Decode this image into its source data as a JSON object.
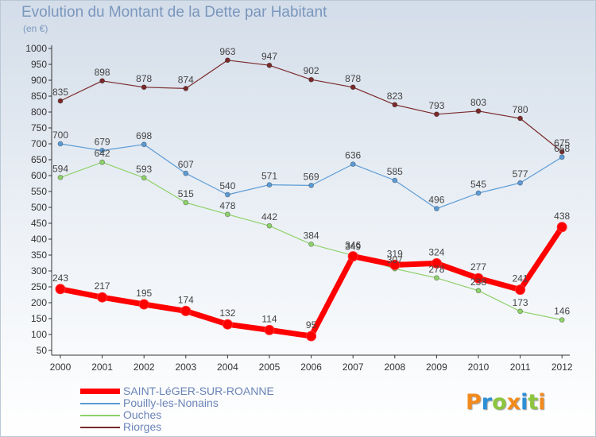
{
  "header": {
    "title": "Evolution du Montant de la Dette par Habitant",
    "subtitle": "(en €)"
  },
  "logo": {
    "text": "Proxiti",
    "letters": [
      "P",
      "r",
      "o",
      "x",
      "i",
      "t",
      "i"
    ],
    "colors": [
      "#f28a1c",
      "#2b8fd6",
      "#8cc63e",
      "#f28a1c",
      "#2b8fd6",
      "#8cc63e",
      "#f28a1c"
    ]
  },
  "chart_data": {
    "type": "line",
    "title": "Evolution du Montant de la Dette par Habitant",
    "subtitle": "(en €)",
    "x": [
      "2000",
      "2001",
      "2002",
      "2003",
      "2004",
      "2005",
      "2006",
      "2007",
      "2008",
      "2009",
      "2010",
      "2011",
      "2012"
    ],
    "ylim": [
      50,
      1000
    ],
    "yticks": [
      50,
      100,
      150,
      200,
      250,
      300,
      350,
      400,
      450,
      500,
      550,
      600,
      650,
      700,
      750,
      800,
      850,
      900,
      950,
      1000
    ],
    "grid": false,
    "legend_position": "bottom-left",
    "series": [
      {
        "name": "SAINT-LéGER-SUR-ROANNE",
        "color": "#ff0000",
        "width": 7,
        "marker": 6,
        "values": [
          243,
          217,
          195,
          174,
          132,
          114,
          95,
          346,
          319,
          324,
          277,
          241,
          438
        ],
        "labels": [
          "243",
          "217",
          "195",
          "174",
          "132",
          "114",
          "95",
          "346",
          "319",
          "324",
          "277",
          "241",
          "438"
        ]
      },
      {
        "name": "Pouilly-les-Nonains",
        "color": "#5b9bd5",
        "width": 1.2,
        "marker": 3,
        "values": [
          700,
          679,
          698,
          607,
          540,
          571,
          569,
          636,
          585,
          496,
          545,
          577,
          658
        ],
        "labels": [
          "700",
          "679",
          "698",
          "607",
          "540",
          "571",
          "569",
          "636",
          "585",
          "496",
          "545",
          "577",
          "658"
        ]
      },
      {
        "name": "Ouches",
        "color": "#8fd16a",
        "width": 1.2,
        "marker": 3,
        "values": [
          594,
          642,
          593,
          515,
          478,
          442,
          384,
          349,
          307,
          278,
          238,
          173,
          146
        ],
        "labels": [
          "594",
          "642",
          "593",
          "515",
          "478",
          "442",
          "384",
          "349",
          "307",
          "278",
          "238",
          "173",
          "146"
        ]
      },
      {
        "name": "Riorges",
        "color": "#7a2a2a",
        "width": 1.2,
        "marker": 3,
        "values": [
          835,
          898,
          878,
          874,
          963,
          947,
          902,
          878,
          823,
          793,
          803,
          780,
          675
        ],
        "labels": [
          "835",
          "898",
          "878",
          "874",
          "963",
          "947",
          "902",
          "878",
          "823",
          "793",
          "803",
          "780",
          "675"
        ]
      }
    ]
  }
}
